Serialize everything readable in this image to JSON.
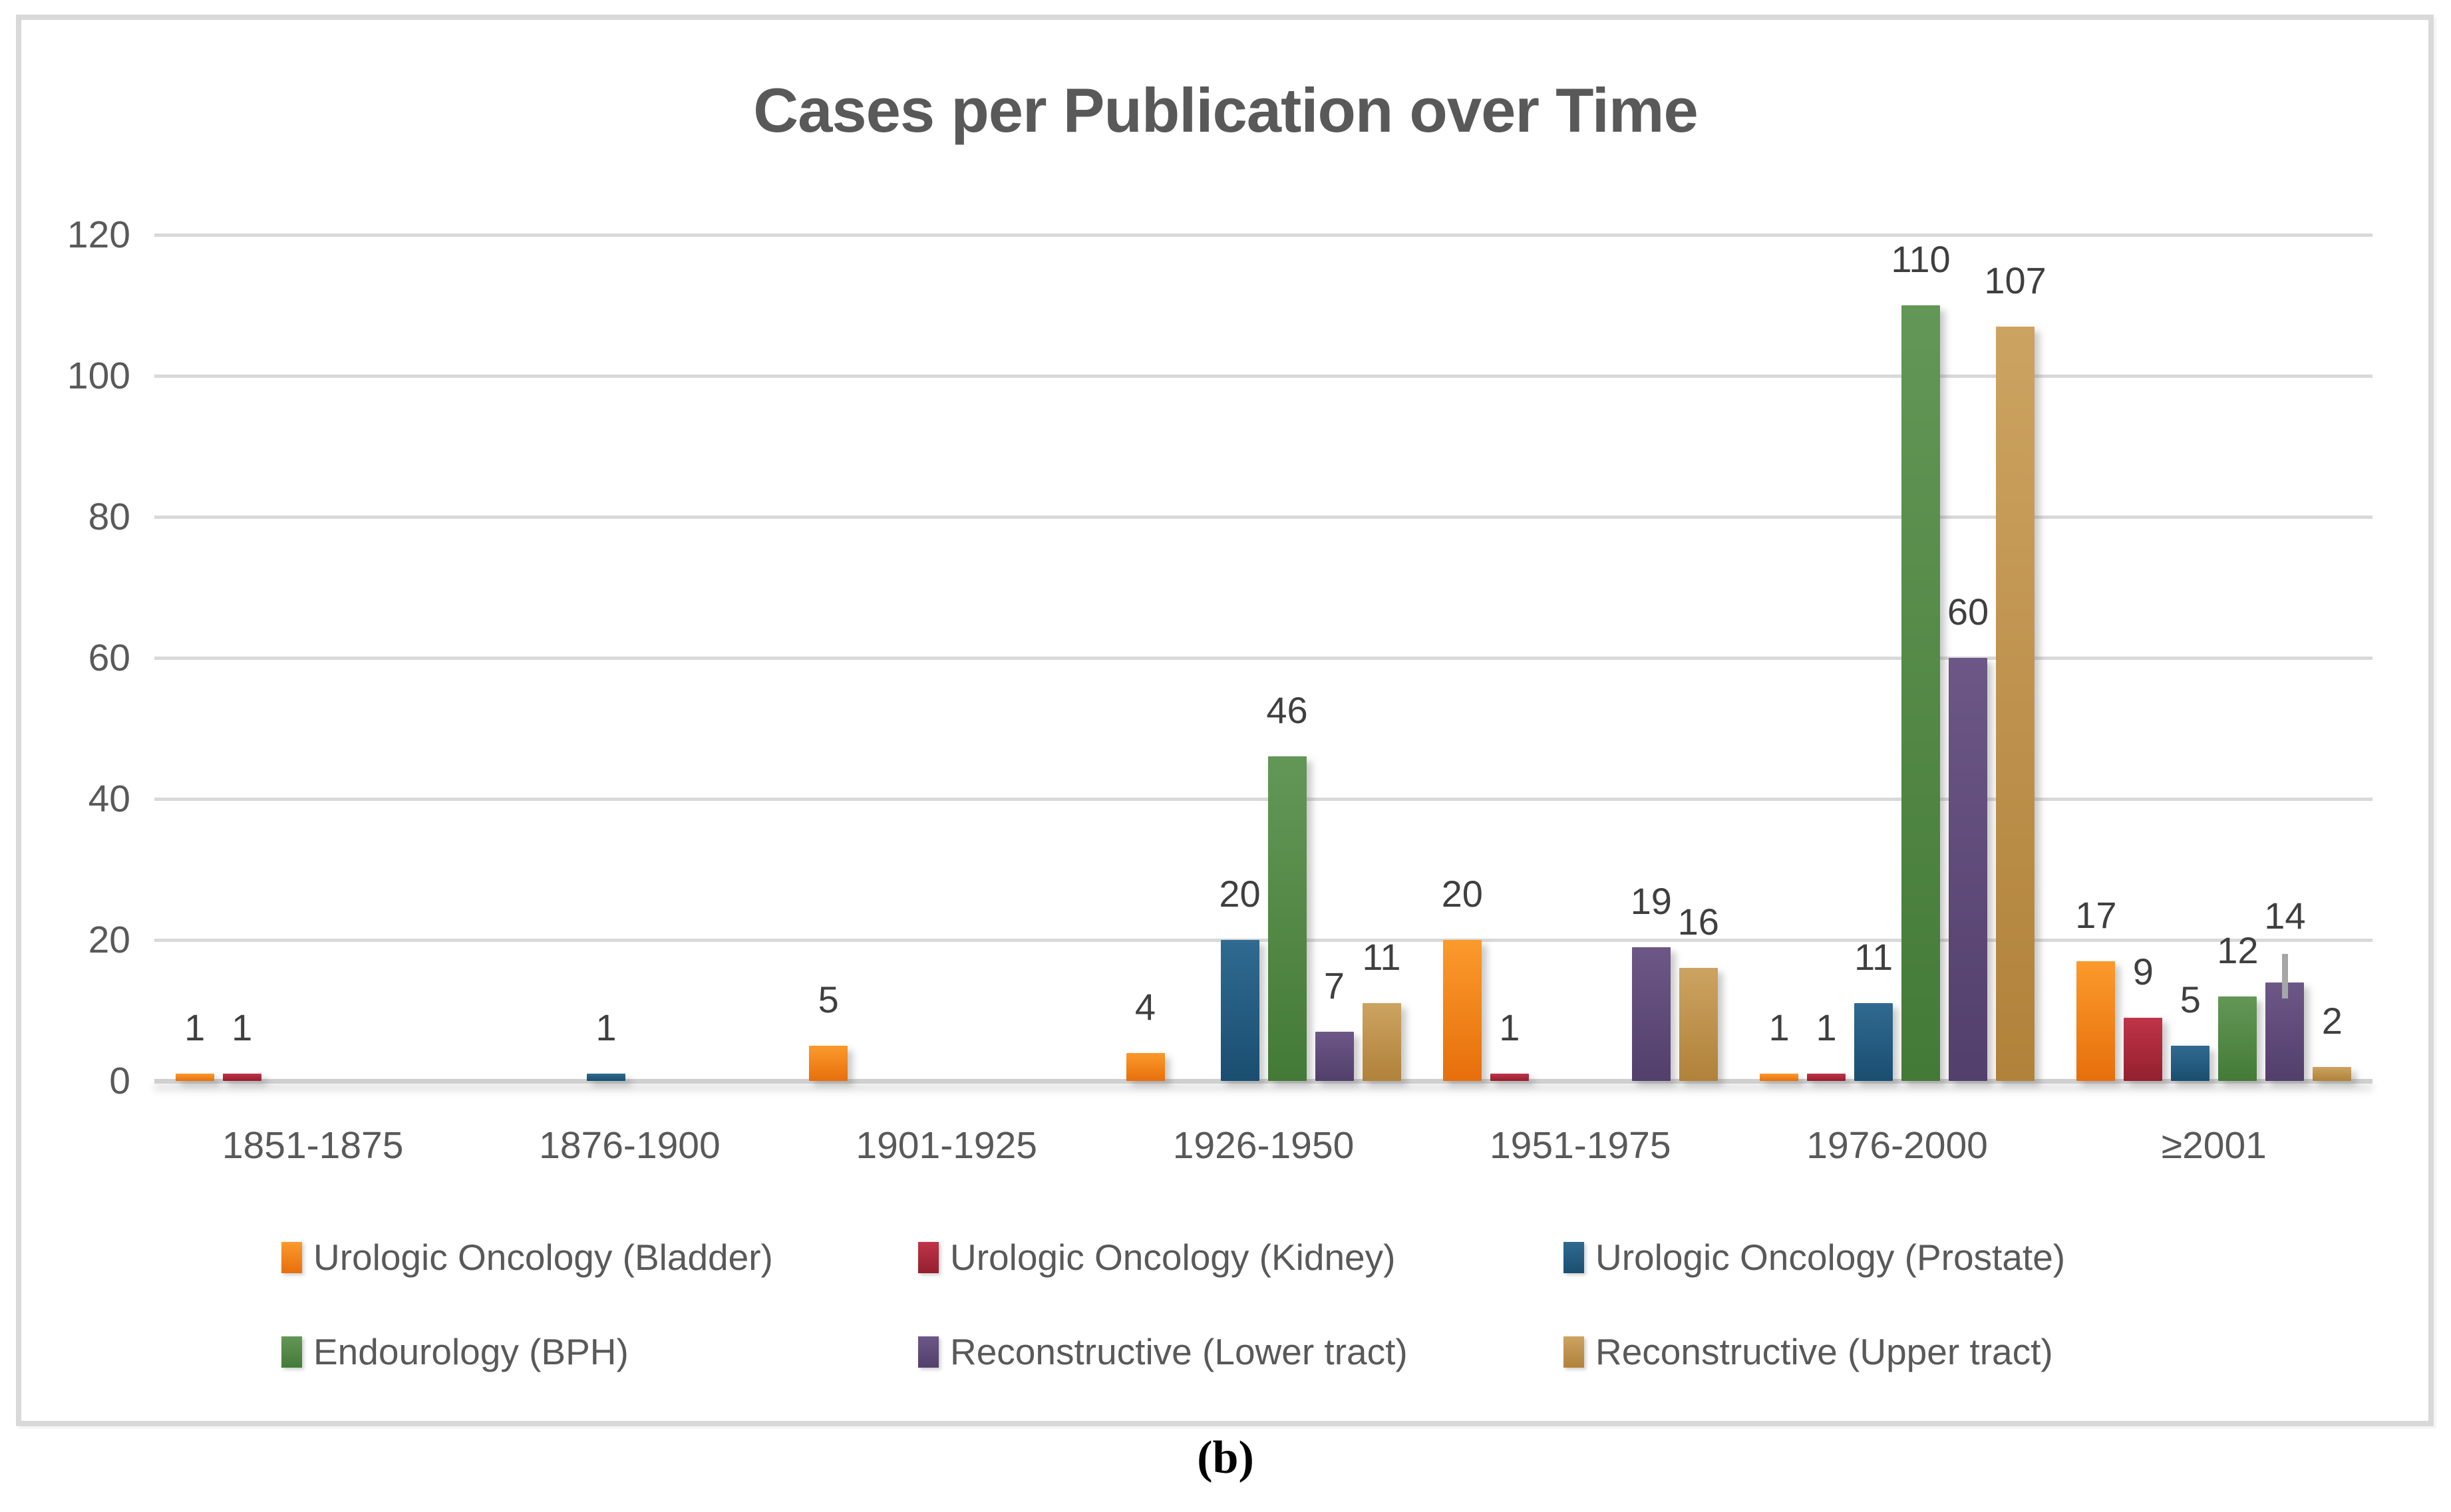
{
  "figure": {
    "caption": "(b)"
  },
  "colors": {
    "background": "#FFFFFF",
    "frame": "#D9D9D9",
    "grid": "#D9D9D9",
    "axis_line": "#CFCFCF",
    "tick_text": "#595959",
    "title_text": "#595959",
    "data_label_text": "#3F3F3F",
    "error_bar": "#A6A6A6"
  },
  "chart_data": {
    "type": "bar",
    "title": "Cases per Publication over Time",
    "xlabel": "",
    "ylabel": "",
    "ylim": [
      0,
      120
    ],
    "yticks": [
      0,
      20,
      40,
      60,
      80,
      100,
      120
    ],
    "grid": true,
    "legend_position": "bottom",
    "categories": [
      "1851-1875",
      "1876-1900",
      "1901-1925",
      "1926-1950",
      "1951-1975",
      "1976-2000",
      "≥2001"
    ],
    "series": [
      {
        "name": "Urologic Oncology (Bladder)",
        "fill_top": "#FB9A2C",
        "fill_bottom": "#E76F0B",
        "values": [
          1,
          0,
          5,
          4,
          20,
          1,
          17
        ]
      },
      {
        "name": "Urologic Oncology (Kidney)",
        "fill_top": "#C03449",
        "fill_bottom": "#93202E",
        "values": [
          1,
          0,
          0,
          0,
          1,
          1,
          9
        ]
      },
      {
        "name": "Urologic Oncology (Prostate)",
        "fill_top": "#306A90",
        "fill_bottom": "#1A4E71",
        "values": [
          0,
          1,
          0,
          20,
          0,
          11,
          5
        ]
      },
      {
        "name": "Endourology (BPH)",
        "fill_top": "#639757",
        "fill_bottom": "#447A38",
        "values": [
          0,
          0,
          0,
          46,
          0,
          110,
          12
        ]
      },
      {
        "name": "Reconstructive (Lower tract)",
        "fill_top": "#6C5787",
        "fill_bottom": "#533F6B",
        "values": [
          0,
          0,
          0,
          7,
          19,
          60,
          14
        ]
      },
      {
        "name": "Reconstructive (Upper tract)",
        "fill_top": "#CDA361",
        "fill_bottom": "#B0823A",
        "values": [
          0,
          0,
          0,
          11,
          16,
          107,
          2
        ]
      }
    ],
    "data_labels_shown_for_nonzero_bars": true,
    "error_bars": [
      {
        "series": "Reconstructive (Lower tract)",
        "category": "≥2001",
        "value": 14,
        "high": 18
      }
    ]
  }
}
